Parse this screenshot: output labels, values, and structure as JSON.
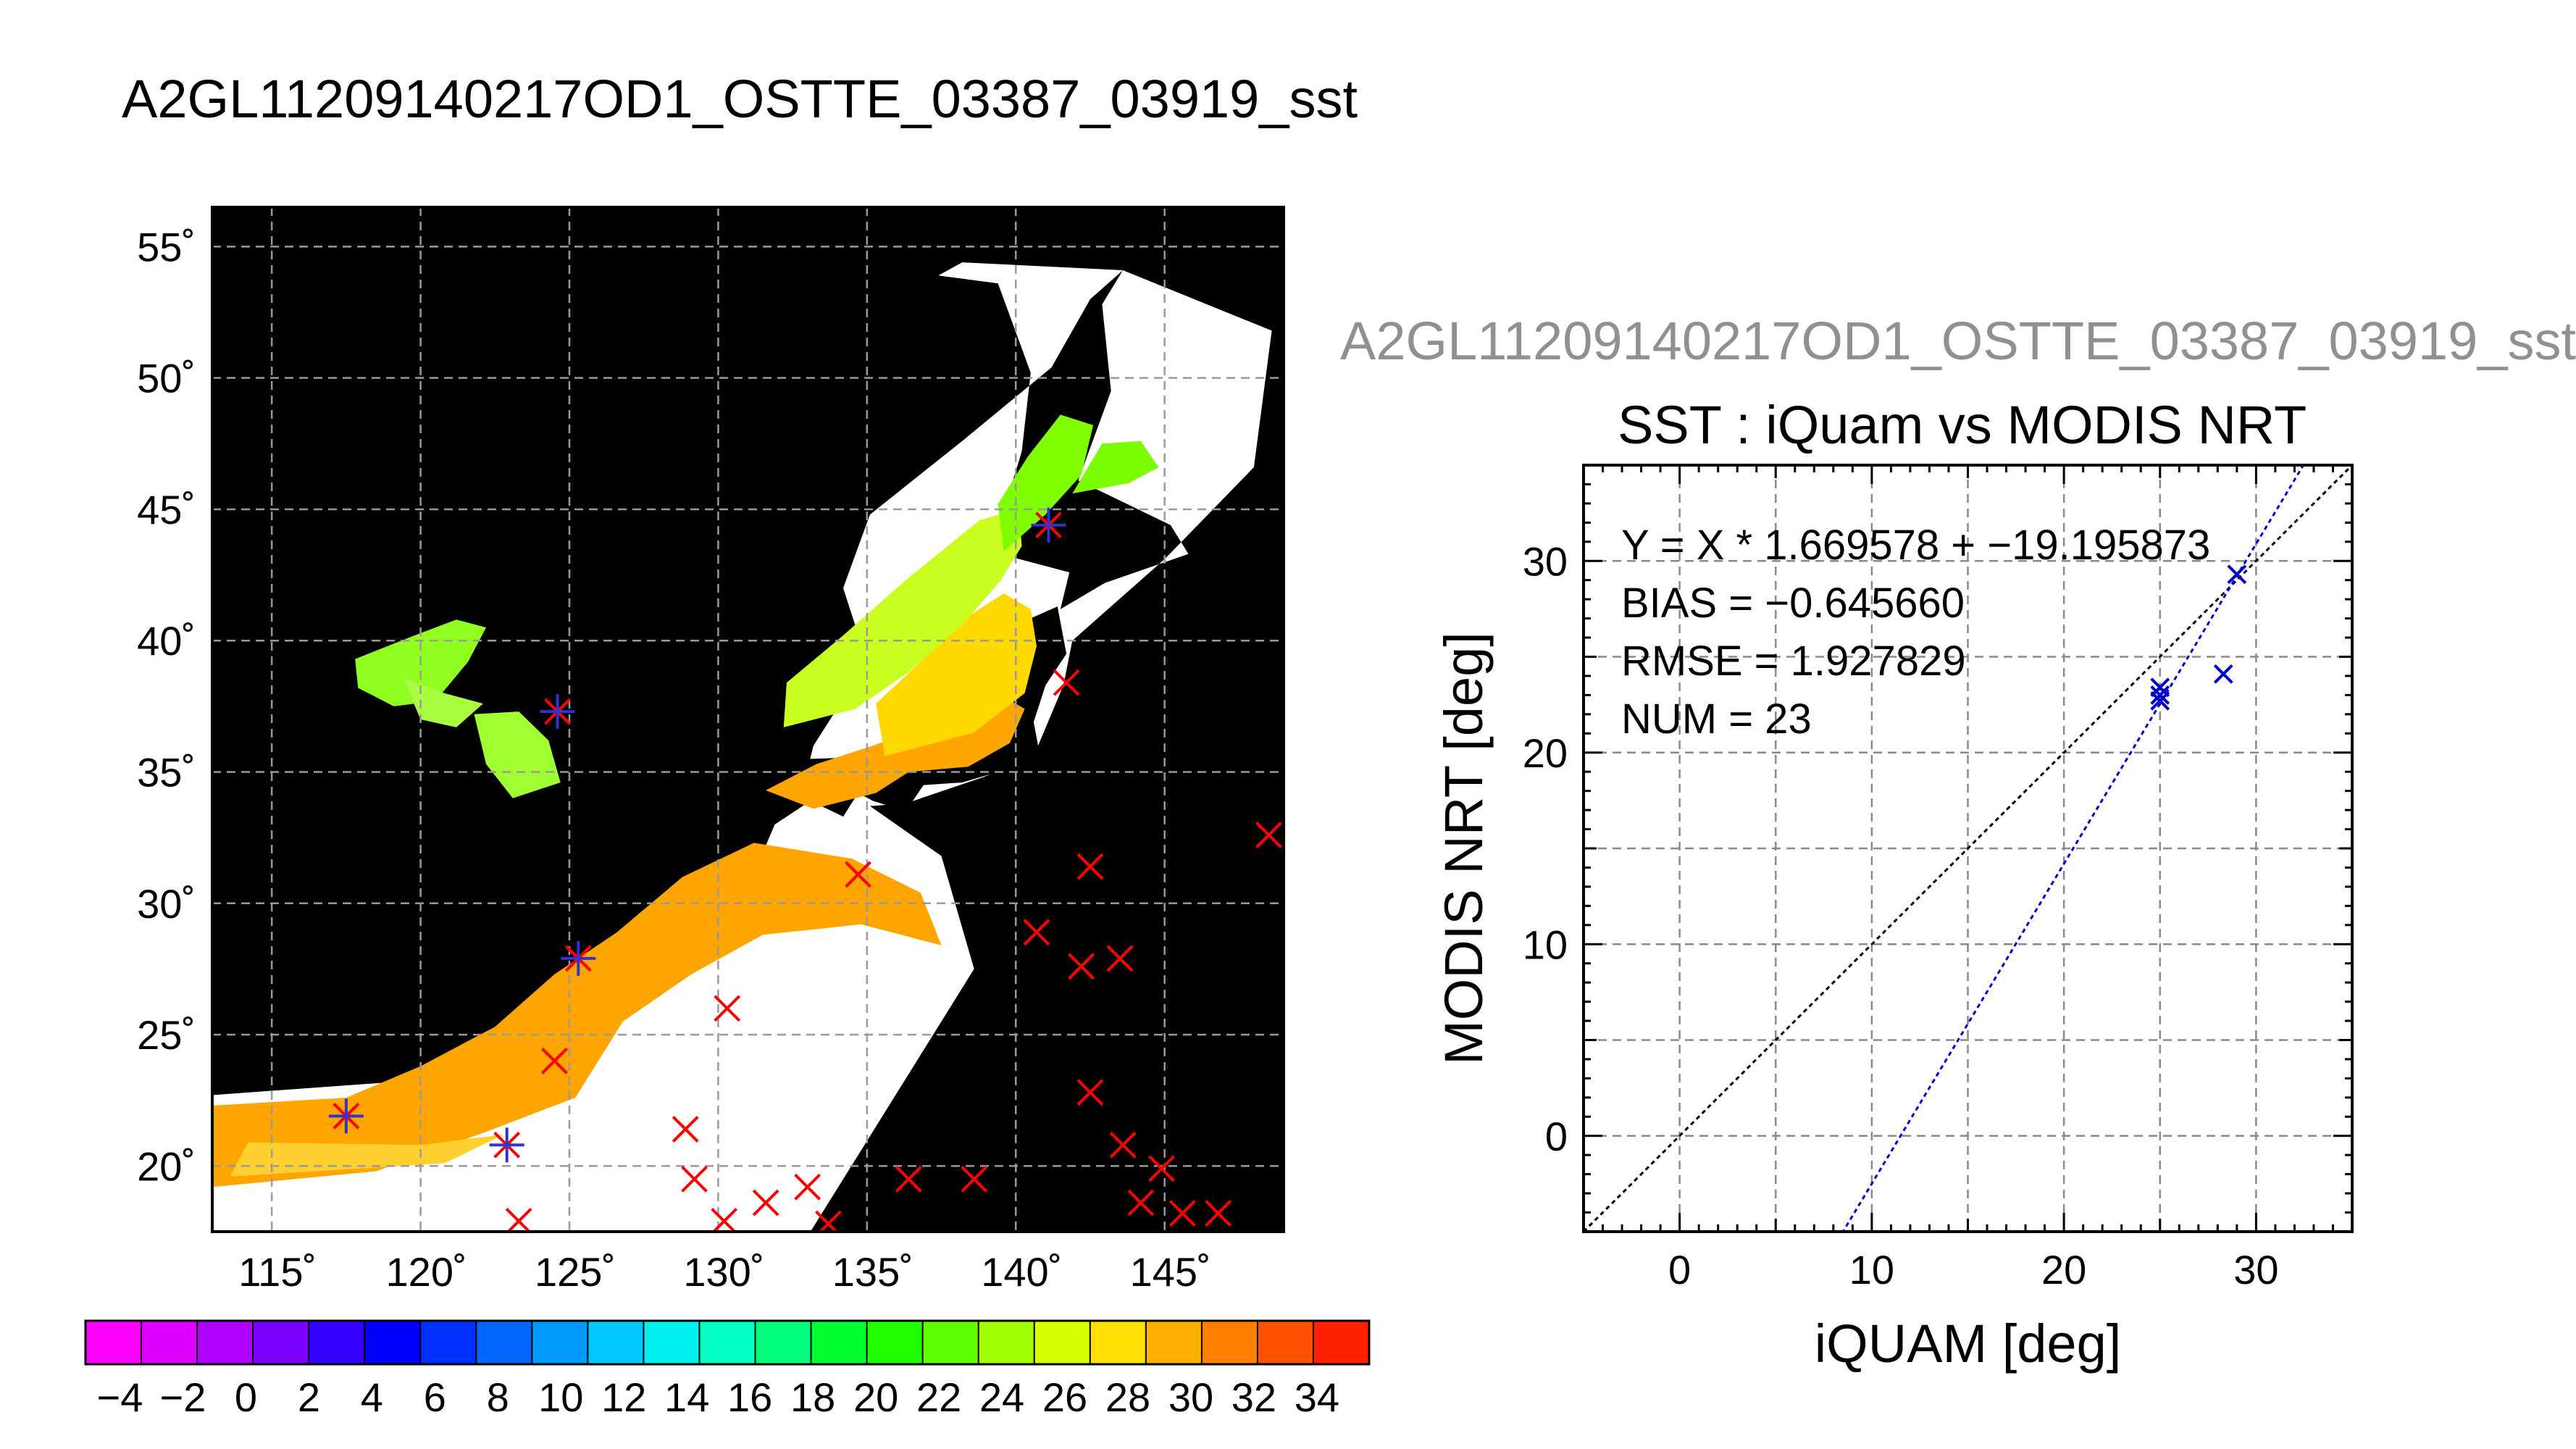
{
  "map_panel": {
    "title": "A2GL11209140217OD1_OSTTE_03387_03919_sst",
    "lon_ticks": [
      "115˚",
      "120˚",
      "125˚",
      "130˚",
      "135˚",
      "140˚",
      "145˚"
    ],
    "lat_ticks": [
      "55˚",
      "50˚",
      "45˚",
      "40˚",
      "35˚",
      "30˚",
      "25˚",
      "20˚"
    ],
    "colorbar_ticks": [
      "−4",
      "−2",
      "0",
      "2",
      "4",
      "6",
      "8",
      "10",
      "12",
      "14",
      "16",
      "18",
      "20",
      "22",
      "24",
      "26",
      "28",
      "30",
      "32",
      "34"
    ],
    "colorbar_colors": [
      "#ff00ff",
      "#dd00ff",
      "#b000ff",
      "#7a00ff",
      "#3500ff",
      "#0000ff",
      "#0030ff",
      "#0066ff",
      "#009aff",
      "#00c8ff",
      "#00f0f0",
      "#00ffc0",
      "#00ff7a",
      "#00ff30",
      "#20ff00",
      "#60ff00",
      "#a0ff00",
      "#d8ff00",
      "#ffe000",
      "#ffb000",
      "#ff8000",
      "#ff5000",
      "#ff2000"
    ],
    "colors": {
      "land": "#000000",
      "nodata": "#ffffff",
      "marker_red": "#ff0000",
      "marker_blue": "#3333cc"
    }
  },
  "scatter_panel": {
    "supertitle": "A2GL11209140217OD1_OSTTE_03387_03919_sst",
    "stats": {
      "equation": "Y = X * 1.669578 + −19.195873",
      "bias": "BIAS = −0.645660",
      "rmse": "RMSE = 1.927829",
      "num": "NUM = 23"
    }
  },
  "chart_data": [
    {
      "type": "map",
      "title": "A2GL11209140217OD1_OSTTE_03387_03919_sst",
      "xlim": [
        113,
        149
      ],
      "ylim": [
        17.5,
        56.5
      ],
      "xticks": [
        115,
        120,
        125,
        130,
        135,
        140,
        145
      ],
      "yticks": [
        20,
        25,
        30,
        35,
        40,
        45,
        50,
        55
      ],
      "grid": true,
      "colorbar": {
        "range": [
          -5,
          35
        ],
        "step": 2
      },
      "matchup_points": [
        {
          "lon": 117.5,
          "lat": 21.9
        },
        {
          "lon": 122.9,
          "lat": 20.8
        },
        {
          "lon": 124.6,
          "lat": 37.3
        },
        {
          "lon": 125.3,
          "lat": 27.9
        },
        {
          "lon": 141.1,
          "lat": 44.4
        }
      ],
      "unmatched_points": [
        {
          "lon": 141.7,
          "lat": 38.4
        },
        {
          "lon": 148.5,
          "lat": 32.6
        },
        {
          "lon": 134.7,
          "lat": 31.1
        },
        {
          "lon": 142.5,
          "lat": 31.4
        },
        {
          "lon": 140.7,
          "lat": 28.9
        },
        {
          "lon": 142.2,
          "lat": 27.6
        },
        {
          "lon": 143.5,
          "lat": 27.9
        },
        {
          "lon": 130.3,
          "lat": 26.0
        },
        {
          "lon": 124.5,
          "lat": 24.0
        },
        {
          "lon": 142.5,
          "lat": 22.8
        },
        {
          "lon": 128.9,
          "lat": 21.4
        },
        {
          "lon": 143.6,
          "lat": 20.8
        },
        {
          "lon": 144.9,
          "lat": 19.9
        },
        {
          "lon": 129.2,
          "lat": 19.5
        },
        {
          "lon": 136.4,
          "lat": 19.5
        },
        {
          "lon": 138.6,
          "lat": 19.5
        },
        {
          "lon": 133.0,
          "lat": 19.2
        },
        {
          "lon": 131.6,
          "lat": 18.6
        },
        {
          "lon": 144.2,
          "lat": 18.6
        },
        {
          "lon": 145.6,
          "lat": 18.2
        },
        {
          "lon": 146.8,
          "lat": 18.2
        },
        {
          "lon": 123.3,
          "lat": 17.9
        },
        {
          "lon": 130.2,
          "lat": 17.9
        },
        {
          "lon": 133.7,
          "lat": 17.8
        }
      ]
    },
    {
      "type": "scatter",
      "title": "SST : iQuam vs MODIS NRT",
      "xlabel": "iQUAM [deg]",
      "ylabel": "MODIS NRT [deg]",
      "xlim": [
        -5,
        35
      ],
      "ylim": [
        -5,
        35
      ],
      "xticks": [
        0,
        10,
        20,
        30
      ],
      "yticks": [
        0,
        10,
        20,
        30
      ],
      "grid": true,
      "series": [
        {
          "points": [
            {
              "x": 25.0,
              "y": 23.4
            },
            {
              "x": 25.0,
              "y": 23.0
            },
            {
              "x": 25.0,
              "y": 22.7
            },
            {
              "x": 28.3,
              "y": 24.1
            },
            {
              "x": 29.0,
              "y": 29.3
            }
          ]
        }
      ],
      "lines": [
        {
          "kind": "one-to-one",
          "slope": 1,
          "intercept": 0,
          "color": "#000000"
        },
        {
          "kind": "regression",
          "slope": 1.669578,
          "intercept": -19.195873,
          "color": "#0000cc"
        }
      ]
    }
  ]
}
